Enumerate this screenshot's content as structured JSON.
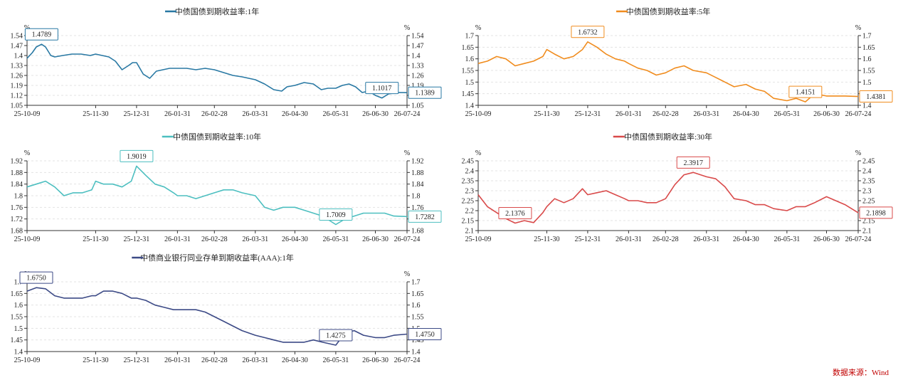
{
  "charts": [
    {
      "title": "中债国债到期收益率:1年",
      "color": "#2878a3",
      "unit": "%",
      "yticks": [
        "1.54",
        "1.47",
        "1.4",
        "1.33",
        "1.26",
        "1.19",
        "1.12",
        "1.05"
      ],
      "xticks": [
        "25-10-09",
        "25-11-30",
        "25-12-31",
        "26-01-31",
        "26-02-28",
        "26-03-31",
        "26-04-30",
        "26-05-31",
        "26-06-30",
        "26-07-24"
      ],
      "max_label": "1.4789",
      "min_label": "1.1017",
      "last_label": "1.1389"
    },
    {
      "title": "中债国债到期收益率:5年",
      "color": "#f08c1e",
      "unit": "%",
      "yticks": [
        "1.7",
        "1.65",
        "1.6",
        "1.55",
        "1.5",
        "1.45",
        "1.4"
      ],
      "xticks": [
        "25-10-09",
        "25-11-30",
        "25-12-31",
        "26-01-31",
        "26-02-28",
        "26-03-31",
        "26-04-30",
        "26-05-31",
        "26-06-30",
        "26-07-24"
      ],
      "max_label": "1.6732",
      "min_label": "1.4151",
      "last_label": "1.4381"
    },
    {
      "title": "中债国债到期收益率:10年",
      "color": "#4dbfc0",
      "unit": "%",
      "yticks": [
        "1.92",
        "1.88",
        "1.84",
        "1.8",
        "1.76",
        "1.72",
        "1.68"
      ],
      "xticks": [
        "25-10-09",
        "25-11-30",
        "25-12-31",
        "26-01-31",
        "26-02-28",
        "26-03-31",
        "26-04-30",
        "26-05-31",
        "26-06-30",
        "26-07-24"
      ],
      "max_label": "1.9019",
      "min_label": "1.7009",
      "last_label": "1.7282"
    },
    {
      "title": "中债国债到期收益率:30年",
      "color": "#d94a4a",
      "unit": "%",
      "yticks": [
        "2.45",
        "2.4",
        "2.35",
        "2.3",
        "2.25",
        "2.2",
        "2.15",
        "2.1"
      ],
      "xticks": [
        "25-10-09",
        "25-11-30",
        "25-12-31",
        "26-01-31",
        "26-02-28",
        "26-03-31",
        "26-04-30",
        "26-05-31",
        "26-06-30",
        "26-07-24"
      ],
      "max_label": "2.3917",
      "min_label": "2.1376",
      "last_label": "2.1898"
    },
    {
      "title": "中债商业银行同业存单到期收益率(AAA):1年",
      "color": "#3c4a86",
      "unit": "%",
      "yticks": [
        "1.7",
        "1.65",
        "1.6",
        "1.55",
        "1.5",
        "1.45",
        "1.4"
      ],
      "xticks": [
        "25-10-09",
        "25-11-30",
        "25-12-31",
        "26-01-31",
        "26-02-28",
        "26-03-31",
        "26-04-30",
        "26-05-31",
        "26-06-30",
        "26-07-24"
      ],
      "max_label": "1.6750",
      "min_label": "1.4275",
      "last_label": "1.4750"
    }
  ],
  "chart_data": [
    {
      "type": "line",
      "title": "中债国债到期收益率:1年",
      "ylim": [
        1.05,
        1.54
      ],
      "x": [
        "25-10-09",
        "25-10-13",
        "25-10-16",
        "25-10-20",
        "25-10-23",
        "25-10-27",
        "25-10-30",
        "25-11-05",
        "25-11-12",
        "25-11-19",
        "25-11-26",
        "25-11-30",
        "25-12-05",
        "25-12-10",
        "25-12-15",
        "25-12-20",
        "25-12-25",
        "25-12-28",
        "25-12-31",
        "26-01-05",
        "26-01-10",
        "26-01-15",
        "26-01-20",
        "26-01-25",
        "26-01-31",
        "26-02-07",
        "26-02-14",
        "26-02-21",
        "26-02-28",
        "26-03-07",
        "26-03-14",
        "26-03-21",
        "26-03-31",
        "26-04-07",
        "26-04-14",
        "26-04-20",
        "26-04-24",
        "26-04-30",
        "26-05-07",
        "26-05-14",
        "26-05-20",
        "26-05-25",
        "26-05-31",
        "26-06-05",
        "26-06-10",
        "26-06-15",
        "26-06-20",
        "26-06-25",
        "26-06-30",
        "26-07-05",
        "26-07-10",
        "26-07-17",
        "26-07-24"
      ],
      "values": [
        1.38,
        1.42,
        1.46,
        1.4789,
        1.46,
        1.4,
        1.39,
        1.4,
        1.41,
        1.41,
        1.4,
        1.41,
        1.4,
        1.39,
        1.36,
        1.3,
        1.33,
        1.35,
        1.35,
        1.27,
        1.24,
        1.29,
        1.3,
        1.31,
        1.31,
        1.31,
        1.3,
        1.31,
        1.3,
        1.28,
        1.26,
        1.25,
        1.23,
        1.2,
        1.16,
        1.15,
        1.18,
        1.19,
        1.21,
        1.2,
        1.16,
        1.17,
        1.17,
        1.19,
        1.2,
        1.18,
        1.14,
        1.15,
        1.12,
        1.1017,
        1.13,
        1.14,
        1.1389
      ]
    },
    {
      "type": "line",
      "title": "中债国债到期收益率:5年",
      "ylim": [
        1.4,
        1.7
      ],
      "x": [
        "25-10-09",
        "25-10-16",
        "25-10-23",
        "25-10-30",
        "25-11-06",
        "25-11-13",
        "25-11-20",
        "25-11-27",
        "25-11-30",
        "25-12-06",
        "25-12-13",
        "25-12-20",
        "25-12-27",
        "25-12-31",
        "26-01-07",
        "26-01-14",
        "26-01-21",
        "26-01-28",
        "26-01-31",
        "26-02-07",
        "26-02-14",
        "26-02-21",
        "26-02-28",
        "26-03-07",
        "26-03-14",
        "26-03-21",
        "26-03-31",
        "26-04-07",
        "26-04-14",
        "26-04-21",
        "26-04-30",
        "26-05-07",
        "26-05-14",
        "26-05-21",
        "26-05-31",
        "26-06-07",
        "26-06-14",
        "26-06-21",
        "26-06-30",
        "26-07-07",
        "26-07-14",
        "26-07-24"
      ],
      "values": [
        1.58,
        1.59,
        1.61,
        1.6,
        1.57,
        1.58,
        1.59,
        1.61,
        1.64,
        1.62,
        1.6,
        1.61,
        1.64,
        1.6732,
        1.65,
        1.62,
        1.6,
        1.59,
        1.58,
        1.56,
        1.55,
        1.53,
        1.54,
        1.56,
        1.57,
        1.55,
        1.54,
        1.52,
        1.5,
        1.48,
        1.49,
        1.47,
        1.46,
        1.43,
        1.42,
        1.43,
        1.4151,
        1.45,
        1.44,
        1.44,
        1.44,
        1.4381
      ]
    },
    {
      "type": "line",
      "title": "中债国债到期收益率:10年",
      "ylim": [
        1.68,
        1.92
      ],
      "x": [
        "25-10-09",
        "25-10-16",
        "25-10-23",
        "25-10-30",
        "25-11-06",
        "25-11-13",
        "25-11-20",
        "25-11-27",
        "25-11-30",
        "25-12-06",
        "25-12-13",
        "25-12-20",
        "25-12-27",
        "25-12-31",
        "26-01-07",
        "26-01-14",
        "26-01-21",
        "26-01-28",
        "26-01-31",
        "26-02-07",
        "26-02-14",
        "26-02-21",
        "26-02-28",
        "26-03-07",
        "26-03-14",
        "26-03-21",
        "26-03-31",
        "26-04-07",
        "26-04-14",
        "26-04-21",
        "26-04-30",
        "26-05-07",
        "26-05-14",
        "26-05-21",
        "26-05-31",
        "26-06-07",
        "26-06-14",
        "26-06-21",
        "26-06-30",
        "26-07-07",
        "26-07-14",
        "26-07-24"
      ],
      "values": [
        1.83,
        1.84,
        1.85,
        1.83,
        1.8,
        1.81,
        1.81,
        1.82,
        1.85,
        1.84,
        1.84,
        1.83,
        1.85,
        1.9019,
        1.87,
        1.84,
        1.83,
        1.81,
        1.8,
        1.8,
        1.79,
        1.8,
        1.81,
        1.82,
        1.82,
        1.81,
        1.8,
        1.76,
        1.75,
        1.76,
        1.76,
        1.75,
        1.74,
        1.73,
        1.7009,
        1.72,
        1.73,
        1.74,
        1.74,
        1.74,
        1.73,
        1.7282
      ]
    },
    {
      "type": "line",
      "title": "中债国债到期收益率:30年",
      "ylim": [
        2.1,
        2.45
      ],
      "x": [
        "25-10-09",
        "25-10-16",
        "25-10-23",
        "25-10-30",
        "25-11-06",
        "25-11-13",
        "25-11-20",
        "25-11-27",
        "25-11-30",
        "25-12-06",
        "25-12-13",
        "25-12-20",
        "25-12-27",
        "25-12-31",
        "26-01-07",
        "26-01-14",
        "26-01-21",
        "26-01-28",
        "26-01-31",
        "26-02-07",
        "26-02-14",
        "26-02-21",
        "26-02-28",
        "26-03-07",
        "26-03-14",
        "26-03-21",
        "26-03-31",
        "26-04-07",
        "26-04-14",
        "26-04-21",
        "26-04-30",
        "26-05-07",
        "26-05-14",
        "26-05-21",
        "26-05-31",
        "26-06-07",
        "26-06-14",
        "26-06-21",
        "26-06-30",
        "26-07-07",
        "26-07-14",
        "26-07-24"
      ],
      "values": [
        2.28,
        2.22,
        2.19,
        2.16,
        2.1376,
        2.15,
        2.14,
        2.19,
        2.22,
        2.26,
        2.24,
        2.26,
        2.31,
        2.28,
        2.29,
        2.3,
        2.28,
        2.26,
        2.25,
        2.25,
        2.24,
        2.24,
        2.26,
        2.33,
        2.38,
        2.3917,
        2.37,
        2.36,
        2.32,
        2.26,
        2.25,
        2.23,
        2.23,
        2.21,
        2.2,
        2.22,
        2.22,
        2.24,
        2.27,
        2.25,
        2.23,
        2.1898
      ]
    },
    {
      "type": "line",
      "title": "中债商业银行同业存单到期收益率(AAA):1年",
      "ylim": [
        1.4,
        1.7
      ],
      "x": [
        "25-10-09",
        "25-10-16",
        "25-10-23",
        "25-10-30",
        "25-11-06",
        "25-11-13",
        "25-11-20",
        "25-11-27",
        "25-11-30",
        "25-12-06",
        "25-12-13",
        "25-12-20",
        "25-12-27",
        "25-12-31",
        "26-01-07",
        "26-01-14",
        "26-01-21",
        "26-01-28",
        "26-01-31",
        "26-02-07",
        "26-02-14",
        "26-02-21",
        "26-02-28",
        "26-03-07",
        "26-03-14",
        "26-03-21",
        "26-03-31",
        "26-04-07",
        "26-04-14",
        "26-04-21",
        "26-04-30",
        "26-05-07",
        "26-05-14",
        "26-05-21",
        "26-05-31",
        "26-06-07",
        "26-06-14",
        "26-06-21",
        "26-06-30",
        "26-07-07",
        "26-07-14",
        "26-07-24"
      ],
      "values": [
        1.66,
        1.675,
        1.67,
        1.64,
        1.63,
        1.63,
        1.63,
        1.64,
        1.64,
        1.66,
        1.66,
        1.65,
        1.63,
        1.63,
        1.62,
        1.6,
        1.59,
        1.58,
        1.58,
        1.58,
        1.58,
        1.57,
        1.55,
        1.53,
        1.51,
        1.49,
        1.47,
        1.46,
        1.45,
        1.44,
        1.44,
        1.44,
        1.45,
        1.44,
        1.4275,
        1.48,
        1.49,
        1.47,
        1.46,
        1.46,
        1.47,
        1.475
      ]
    }
  ],
  "source": "数据来源：Wind"
}
